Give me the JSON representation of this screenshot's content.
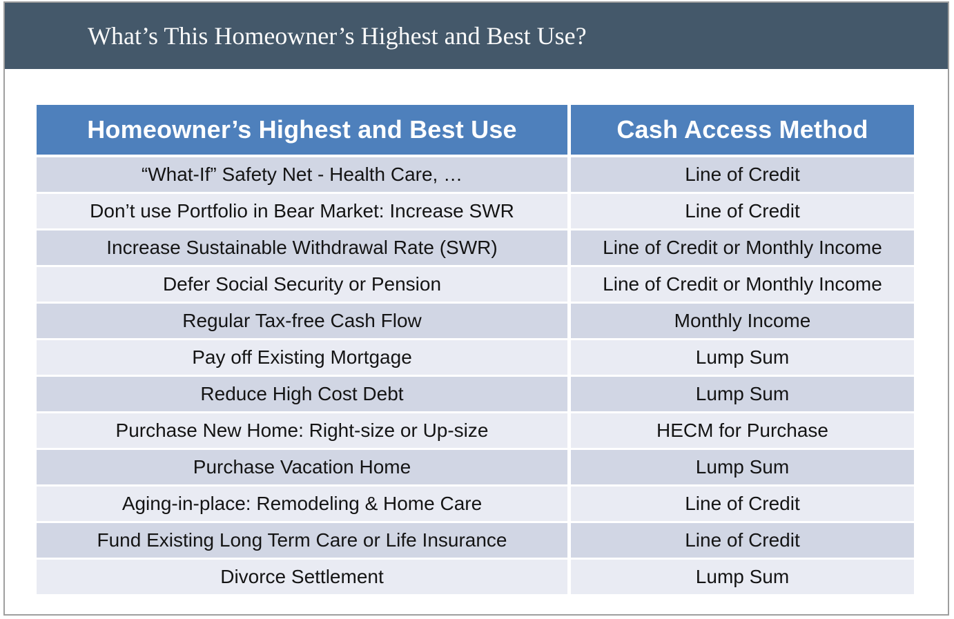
{
  "title_bar": {
    "text": "What’s This Homeowner’s Highest and Best Use?"
  },
  "table": {
    "headers": [
      "Homeowner’s Highest and Best Use",
      "Cash Access Method"
    ],
    "rows": [
      {
        "use": "“What-If” Safety Net - Health Care, …",
        "method": "Line of Credit"
      },
      {
        "use": "Don’t use Portfolio in Bear Market: Increase SWR",
        "method": "Line of Credit"
      },
      {
        "use": "Increase Sustainable Withdrawal Rate (SWR)",
        "method": "Line of Credit or Monthly Income"
      },
      {
        "use": "Defer Social Security or Pension",
        "method": "Line of Credit or Monthly Income"
      },
      {
        "use": "Regular Tax-free Cash Flow",
        "method": "Monthly Income"
      },
      {
        "use": "Pay off Existing Mortgage",
        "method": "Lump Sum"
      },
      {
        "use": "Reduce High Cost Debt",
        "method": "Lump Sum"
      },
      {
        "use": "Purchase New Home: Right-size or Up-size",
        "method": "HECM for Purchase"
      },
      {
        "use": "Purchase Vacation Home",
        "method": "Lump Sum"
      },
      {
        "use": "Aging-in-place: Remodeling & Home Care",
        "method": "Line of Credit"
      },
      {
        "use": "Fund Existing Long Term Care or Life Insurance",
        "method": "Line of Credit"
      },
      {
        "use": "Divorce Settlement",
        "method": "Lump Sum"
      }
    ]
  },
  "colors": {
    "titlebar_bg": "#44586A",
    "header_bg": "#4E80BC",
    "header_text": "#FFFFFF",
    "band_dark": "#D1D6E4",
    "band_light": "#E9EBF3",
    "cell_text": "#141414",
    "slide_border": "#9E9E9E"
  }
}
